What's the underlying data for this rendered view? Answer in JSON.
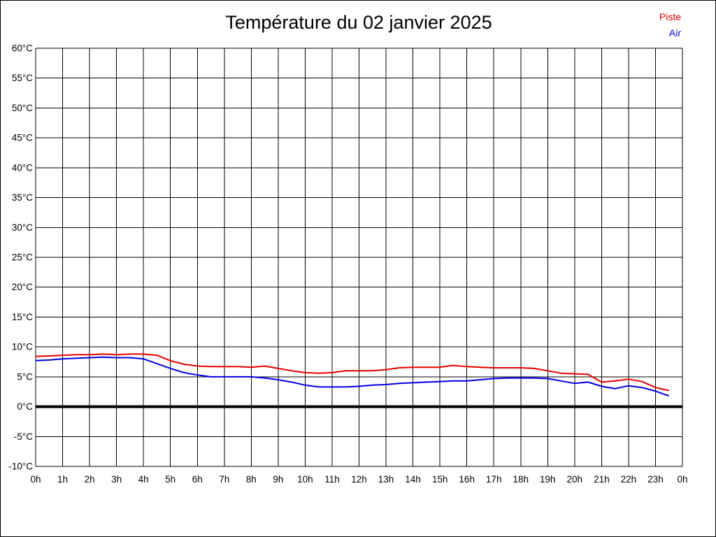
{
  "page": {
    "background": "#ffffff",
    "border_color": "#000000"
  },
  "legend": {
    "piste_label": "Piste",
    "air_label": "Air"
  },
  "chart_data": {
    "type": "line",
    "title": "Température du 02 janvier 2025",
    "xlabel": "",
    "ylabel": "",
    "ylim": [
      -10,
      60
    ],
    "y_tick_step": 5,
    "y_tick_labels": [
      "60°C",
      "55°C",
      "50°C",
      "45°C",
      "40°C",
      "35°C",
      "30°C",
      "25°C",
      "20°C",
      "15°C",
      "10°C",
      "5°C",
      "0°C",
      "-5°C",
      "-10°C"
    ],
    "x_range_hours": [
      0,
      24
    ],
    "x_tick_step_hours": 1,
    "x_tick_labels": [
      "0h",
      "1h",
      "2h",
      "3h",
      "4h",
      "5h",
      "6h",
      "7h",
      "8h",
      "9h",
      "10h",
      "11h",
      "12h",
      "13h",
      "14h",
      "15h",
      "16h",
      "17h",
      "18h",
      "19h",
      "20h",
      "21h",
      "22h",
      "23h",
      "0h"
    ],
    "grid": true,
    "grid_color": "#000000",
    "zero_line": {
      "value": 0,
      "color": "#000000",
      "width": 4
    },
    "legend_position": "top-right",
    "sample_step_hours": 0.5,
    "series": [
      {
        "name": "Piste",
        "color": "#e60000",
        "values": [
          8.4,
          8.5,
          8.6,
          8.7,
          8.7,
          8.8,
          8.7,
          8.8,
          8.8,
          8.6,
          7.7,
          7.1,
          6.8,
          6.7,
          6.7,
          6.7,
          6.6,
          6.8,
          6.4,
          6.0,
          5.7,
          5.6,
          5.7,
          6.0,
          6.0,
          6.0,
          6.2,
          6.5,
          6.6,
          6.6,
          6.6,
          6.9,
          6.7,
          6.6,
          6.5,
          6.5,
          6.5,
          6.4,
          6.0,
          5.6,
          5.5,
          5.4,
          4.1,
          4.3,
          4.6,
          4.2,
          3.2,
          2.7
        ]
      },
      {
        "name": "Air",
        "color": "#0000e6",
        "values": [
          7.7,
          7.8,
          8.0,
          8.1,
          8.2,
          8.3,
          8.2,
          8.2,
          8.0,
          7.2,
          6.4,
          5.7,
          5.3,
          5.0,
          5.0,
          5.0,
          5.0,
          4.8,
          4.5,
          4.1,
          3.6,
          3.3,
          3.3,
          3.3,
          3.4,
          3.6,
          3.7,
          3.9,
          4.0,
          4.1,
          4.2,
          4.3,
          4.3,
          4.5,
          4.7,
          4.8,
          4.8,
          4.8,
          4.7,
          4.3,
          3.9,
          4.1,
          3.4,
          3.0,
          3.5,
          3.2,
          2.6,
          1.8
        ]
      }
    ]
  }
}
